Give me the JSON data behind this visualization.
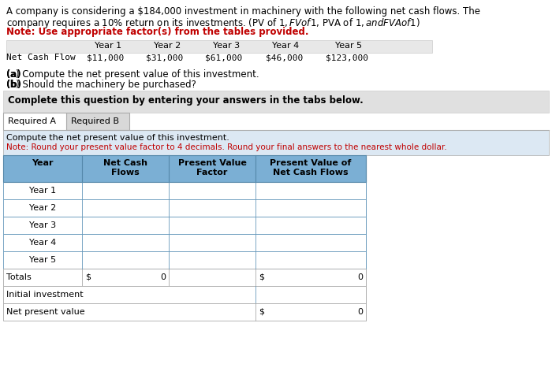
{
  "title_line1": "A company is considering a $184,000 investment in machinery with the following net cash flows. The",
  "title_line2_pre": "company requires a 10% return on its investments. (",
  "title_line2_links": [
    "PV of $1",
    "FV of $1",
    "PVA of $1",
    "FVA of $1"
  ],
  "title_line2_post": ")",
  "note_bold": "Note: Use appropriate factor(s) from the tables provided.",
  "years": [
    "Year 1",
    "Year 2",
    "Year 3",
    "Year 4",
    "Year 5"
  ],
  "net_cash_flows_label": "Net Cash Flow",
  "net_cash_flows": [
    "$11,000",
    "$31,000",
    "$61,000",
    "$46,000",
    "$123,000"
  ],
  "question_a": "(a) Compute the net present value of this investment.",
  "question_b": "(b) Should the machinery be purchased?",
  "tab_instruction": "Complete this question by entering your answers in the tabs below.",
  "tab1": "Required A",
  "tab2": "Required B",
  "instruction_line1": "Compute the net present value of this investment.",
  "instruction_line2_red": "Note: Round your present value factor to 4 decimals. Round your final answers to the nearest whole dollar.",
  "col_headers": [
    "Year",
    "Net Cash\nFlows",
    "Present Value\nFactor",
    "Present Value of\nNet Cash Flows"
  ],
  "table_rows": [
    "Year 1",
    "Year 2",
    "Year 3",
    "Year 4",
    "Year 5"
  ],
  "totals_label": "Totals",
  "initial_investment_label": "Initial investment",
  "npv_label": "Net present value",
  "bg_color": "#ffffff",
  "header_bg": "#7bafd4",
  "light_blue_bg": "#dce8f3",
  "gray_bg": "#e0e0e0",
  "tab_active_bg": "#ffffff",
  "tab_inactive_bg": "#d8d8d8",
  "link_color": "#4472c4",
  "red_color": "#c00000",
  "note_color": "#c00000",
  "figw": 7.0,
  "figh": 4.77,
  "dpi": 100
}
